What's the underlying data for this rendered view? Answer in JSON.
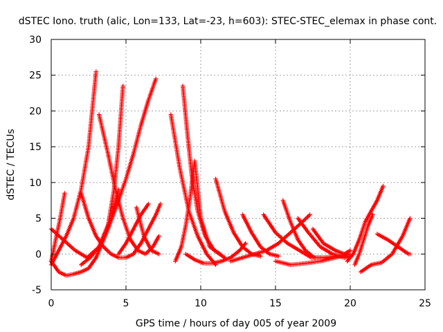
{
  "chart_data": {
    "type": "scatter",
    "title": "dSTEC Iono. truth (alic, Lon=133, Lat=-23, h=603): STEC-STEC_elemax in phase cont.",
    "xlabel": "GPS time / hours of day 005 of year 2009",
    "ylabel": "dSTEC  / TECUs",
    "xlim": [
      0,
      25
    ],
    "ylim": [
      -5,
      30
    ],
    "xticks": [
      0,
      5,
      10,
      15,
      20,
      25
    ],
    "yticks": [
      -5,
      0,
      5,
      10,
      15,
      20,
      25,
      30
    ],
    "xtick_labels": [
      "0",
      "5",
      "10",
      "15",
      "20",
      "25"
    ],
    "ytick_labels": [
      "-5",
      "0",
      "5",
      "10",
      "15",
      "20",
      "25",
      "30"
    ],
    "grid": true,
    "legend": "none",
    "marker": "plus",
    "color": "#ff0000",
    "series": [
      {
        "x": [
          0.0,
          0.5,
          1.0,
          1.5,
          2.0,
          2.5,
          3.0,
          3.3,
          3.8,
          4.5,
          5.0,
          5.5,
          6.0,
          6.5,
          7.0
        ],
        "y": [
          -1.0,
          -2.5,
          -3.0,
          -2.8,
          -2.5,
          -2.0,
          -0.5,
          1.0,
          3.5,
          7.5,
          10.5,
          14.0,
          18.0,
          21.5,
          24.5
        ]
      },
      {
        "x": [
          0.0,
          0.5,
          1.0,
          1.5,
          2.0,
          2.5,
          3.0
        ],
        "y": [
          -1.5,
          0.5,
          2.5,
          5.0,
          9.0,
          15.0,
          25.5
        ]
      },
      {
        "x": [
          0.0,
          0.3,
          0.6,
          0.9
        ],
        "y": [
          -1.0,
          2.0,
          5.0,
          8.5
        ]
      },
      {
        "x": [
          0.0,
          0.8,
          1.6,
          2.4,
          3.2,
          4.0,
          4.5
        ],
        "y": [
          3.5,
          2.0,
          0.5,
          -0.5,
          1.0,
          5.0,
          9.0
        ]
      },
      {
        "x": [
          2.0,
          2.6,
          3.2,
          3.8,
          4.2,
          4.5,
          4.8
        ],
        "y": [
          -1.5,
          -0.5,
          1.0,
          4.0,
          9.0,
          15.0,
          23.5
        ]
      },
      {
        "x": [
          2.0,
          2.5,
          3.0,
          3.5,
          4.0,
          4.5,
          5.0,
          5.5,
          6.0
        ],
        "y": [
          8.5,
          5.0,
          2.5,
          1.0,
          0.0,
          -0.5,
          -0.5,
          0.0,
          1.5
        ]
      },
      {
        "x": [
          3.2,
          3.8,
          4.3,
          4.8,
          5.3,
          5.8,
          6.3,
          6.8,
          7.2
        ],
        "y": [
          19.5,
          14.0,
          9.0,
          5.0,
          2.0,
          0.5,
          0.0,
          1.0,
          2.5
        ]
      },
      {
        "x": [
          5.7,
          6.2,
          6.7,
          7.2
        ],
        "y": [
          6.5,
          2.5,
          0.5,
          0.0
        ]
      },
      {
        "x": [
          5.5,
          6.0,
          6.5,
          7.0,
          7.3
        ],
        "y": [
          0.0,
          1.5,
          3.5,
          5.5,
          7.0
        ]
      },
      {
        "x": [
          4.5,
          5.0,
          5.5,
          6.0,
          6.5
        ],
        "y": [
          0.0,
          1.5,
          3.5,
          5.5,
          7.0
        ]
      },
      {
        "x": [
          8.0,
          8.6,
          9.2,
          9.8,
          10.4,
          11.0
        ],
        "y": [
          19.5,
          12.0,
          6.0,
          2.5,
          0.0,
          -1.5
        ]
      },
      {
        "x": [
          8.3,
          8.7,
          9.0,
          9.3,
          9.6,
          10.0,
          10.6,
          11.3
        ],
        "y": [
          -1.0,
          1.0,
          4.0,
          8.0,
          13.0,
          5.0,
          1.0,
          0.0
        ]
      },
      {
        "x": [
          8.8,
          9.1,
          9.4,
          9.8,
          10.3,
          10.9,
          11.6
        ],
        "y": [
          23.5,
          17.0,
          11.0,
          6.0,
          2.5,
          0.5,
          -0.5
        ]
      },
      {
        "x": [
          9.0,
          9.6,
          10.2,
          10.8,
          11.4,
          12.0,
          12.6,
          13.0
        ],
        "y": [
          0.0,
          -0.8,
          -1.3,
          -1.3,
          -1.0,
          -0.5,
          0.5,
          1.5
        ]
      },
      {
        "x": [
          11.0,
          11.6,
          12.2,
          12.8,
          13.4,
          14.0
        ],
        "y": [
          10.5,
          6.0,
          3.0,
          1.0,
          0.0,
          -0.3
        ]
      },
      {
        "x": [
          12.8,
          13.4,
          14.0,
          14.6,
          15.2
        ],
        "y": [
          5.5,
          3.0,
          1.0,
          0.0,
          -0.3
        ]
      },
      {
        "x": [
          12.0,
          12.8,
          13.6,
          14.4,
          15.2,
          16.0,
          16.8,
          17.3
        ],
        "y": [
          -1.0,
          -0.5,
          0.0,
          0.5,
          1.5,
          3.0,
          4.5,
          5.5
        ]
      },
      {
        "x": [
          14.2,
          15.0,
          15.8,
          16.6,
          17.4,
          18.0
        ],
        "y": [
          5.5,
          3.0,
          1.5,
          0.5,
          -0.5,
          -0.5
        ]
      },
      {
        "x": [
          15.5,
          16.0,
          16.5,
          17.0,
          17.6,
          18.2,
          19.0
        ],
        "y": [
          7.5,
          4.5,
          2.0,
          0.5,
          -0.5,
          -0.5,
          -0.3
        ]
      },
      {
        "x": [
          15.0,
          16.0,
          17.0,
          18.0,
          19.0,
          20.0
        ],
        "y": [
          -1.0,
          -1.5,
          -1.3,
          -1.0,
          -0.5,
          0.0
        ]
      },
      {
        "x": [
          16.5,
          17.2,
          18.0,
          18.8,
          19.6,
          20.0
        ],
        "y": [
          5.0,
          3.0,
          1.0,
          0.0,
          -0.5,
          -0.3
        ]
      },
      {
        "x": [
          17.5,
          18.2,
          19.0,
          19.6,
          20.0
        ],
        "y": [
          3.5,
          1.5,
          0.5,
          0.0,
          0.5
        ]
      },
      {
        "x": [
          19.8,
          20.2,
          20.6,
          21.0,
          21.4,
          21.8,
          22.2
        ],
        "y": [
          -1.0,
          0.0,
          2.0,
          4.5,
          6.0,
          7.5,
          9.5
        ]
      },
      {
        "x": [
          20.3,
          20.6,
          20.9,
          21.2,
          21.5
        ],
        "y": [
          -1.5,
          0.0,
          2.0,
          4.0,
          5.5
        ]
      },
      {
        "x": [
          20.7,
          21.4,
          22.1,
          22.8,
          23.5,
          24.0
        ],
        "y": [
          -2.5,
          -1.5,
          -1.2,
          0.0,
          2.5,
          5.0
        ]
      },
      {
        "x": [
          21.8,
          22.5,
          23.2,
          23.9,
          24.0
        ],
        "y": [
          2.8,
          2.0,
          1.0,
          0.0,
          0.0
        ]
      }
    ]
  }
}
